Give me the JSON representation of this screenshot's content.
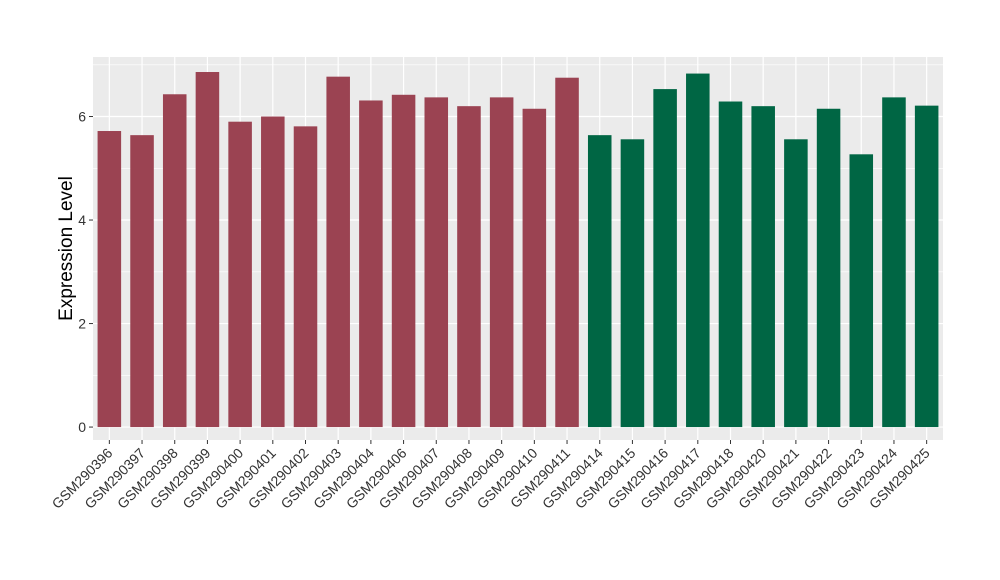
{
  "chart_data": {
    "type": "bar",
    "title": "",
    "xlabel": "",
    "ylabel": "Expression Level",
    "ylim": [
      -0.25,
      7.15
    ],
    "yticks": [
      0,
      2,
      4,
      6
    ],
    "grid": true,
    "legend": "none",
    "categories": [
      "GSM290396",
      "GSM290397",
      "GSM290398",
      "GSM290399",
      "GSM290400",
      "GSM290401",
      "GSM290402",
      "GSM290403",
      "GSM290404",
      "GSM290406",
      "GSM290407",
      "GSM290408",
      "GSM290409",
      "GSM290410",
      "GSM290411",
      "GSM290414",
      "GSM290415",
      "GSM290416",
      "GSM290417",
      "GSM290418",
      "GSM290420",
      "GSM290421",
      "GSM290422",
      "GSM290423",
      "GSM290424",
      "GSM290425"
    ],
    "values": [
      5.72,
      5.64,
      6.43,
      6.86,
      5.9,
      6.0,
      5.81,
      6.77,
      6.31,
      6.42,
      6.37,
      6.2,
      6.37,
      6.15,
      6.75,
      5.64,
      5.56,
      6.53,
      6.83,
      6.29,
      6.2,
      5.56,
      6.15,
      5.27,
      6.37,
      6.21
    ],
    "group_colors": [
      "#9b4352",
      "#9b4352",
      "#9b4352",
      "#9b4352",
      "#9b4352",
      "#9b4352",
      "#9b4352",
      "#9b4352",
      "#9b4352",
      "#9b4352",
      "#9b4352",
      "#9b4352",
      "#9b4352",
      "#9b4352",
      "#9b4352",
      "#006644",
      "#006644",
      "#006644",
      "#006644",
      "#006644",
      "#006644",
      "#006644",
      "#006644",
      "#006644",
      "#006644",
      "#006644"
    ],
    "panel_background": "#ebebeb",
    "grid_color": "#ffffff"
  }
}
